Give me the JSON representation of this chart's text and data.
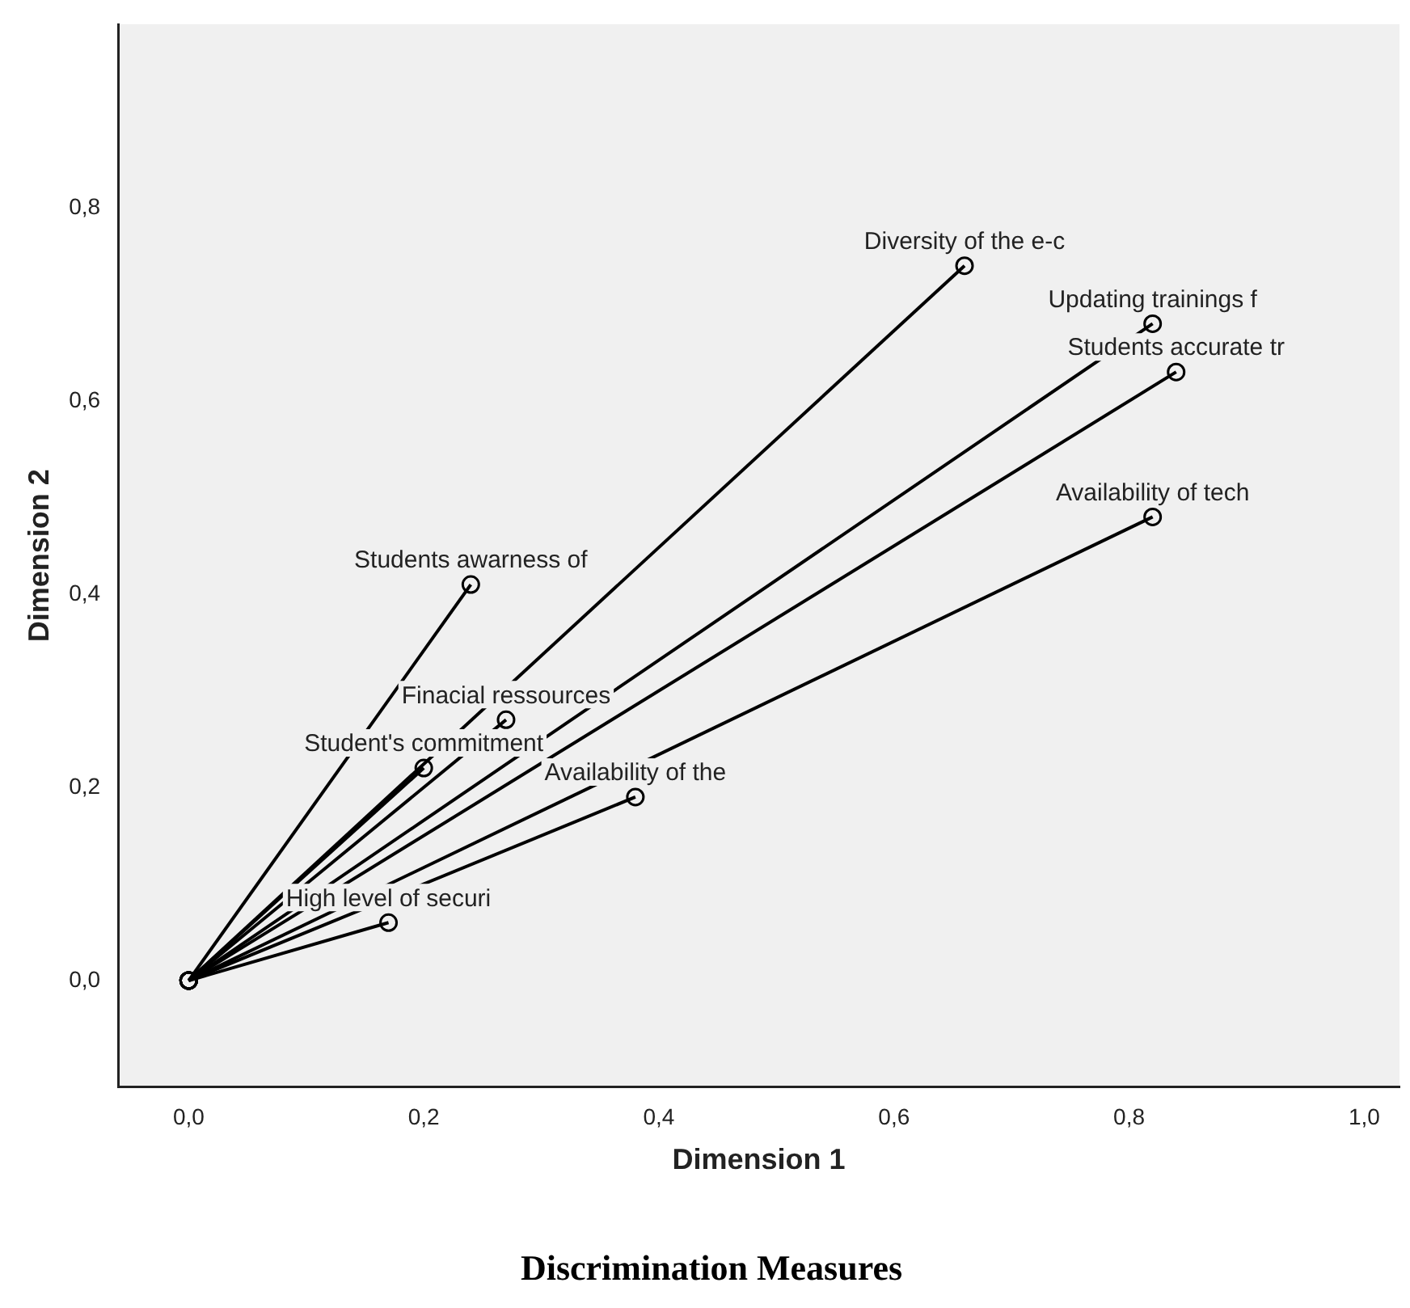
{
  "chart_data": {
    "type": "line",
    "title": "Discrimination Measures",
    "xlabel": "Dimension 1",
    "ylabel": "Dimension 2",
    "xlim": [
      -0.06,
      1.03
    ],
    "ylim": [
      -0.11,
      0.99
    ],
    "xticks": [
      {
        "value": 0,
        "label": "0,0"
      },
      {
        "value": 0.2,
        "label": "0,2"
      },
      {
        "value": 0.4,
        "label": "0,4"
      },
      {
        "value": 0.6,
        "label": "0,6"
      },
      {
        "value": 0.8,
        "label": "0,8"
      },
      {
        "value": 1,
        "label": "1,0"
      }
    ],
    "yticks": [
      {
        "value": 0,
        "label": "0,0"
      },
      {
        "value": 0.2,
        "label": "0,2"
      },
      {
        "value": 0.4,
        "label": "0,4"
      },
      {
        "value": 0.6,
        "label": "0,6"
      },
      {
        "value": 0.8,
        "label": "0,8"
      }
    ],
    "grid": false,
    "legend": false,
    "marker": "circle",
    "line_style": "solid",
    "series": [
      {
        "name": "Diversity of the e-c",
        "color": "#000000",
        "x": [
          0,
          0.66
        ],
        "values": [
          0,
          0.74
        ]
      },
      {
        "name": "Updating trainings f",
        "color": "#000000",
        "x": [
          0,
          0.82
        ],
        "values": [
          0,
          0.68
        ]
      },
      {
        "name": "Students accurate tr",
        "color": "#000000",
        "x": [
          0,
          0.84
        ],
        "values": [
          0,
          0.63
        ]
      },
      {
        "name": "Availability of tech",
        "color": "#000000",
        "x": [
          0,
          0.82
        ],
        "values": [
          0,
          0.48
        ]
      },
      {
        "name": "Students awarness of",
        "color": "#000000",
        "x": [
          0,
          0.24
        ],
        "values": [
          0,
          0.41
        ]
      },
      {
        "name": "Finacial ressources",
        "color": "#000000",
        "x": [
          0,
          0.27
        ],
        "values": [
          0,
          0.27
        ]
      },
      {
        "name": "Student's commitment",
        "color": "#000000",
        "x": [
          0,
          0.2
        ],
        "values": [
          0,
          0.22
        ]
      },
      {
        "name": "Availability of the",
        "color": "#000000",
        "x": [
          0,
          0.38
        ],
        "values": [
          0,
          0.19
        ]
      },
      {
        "name": "High level of securi",
        "color": "#000000",
        "x": [
          0,
          0.17
        ],
        "values": [
          0,
          0.06
        ]
      }
    ]
  }
}
